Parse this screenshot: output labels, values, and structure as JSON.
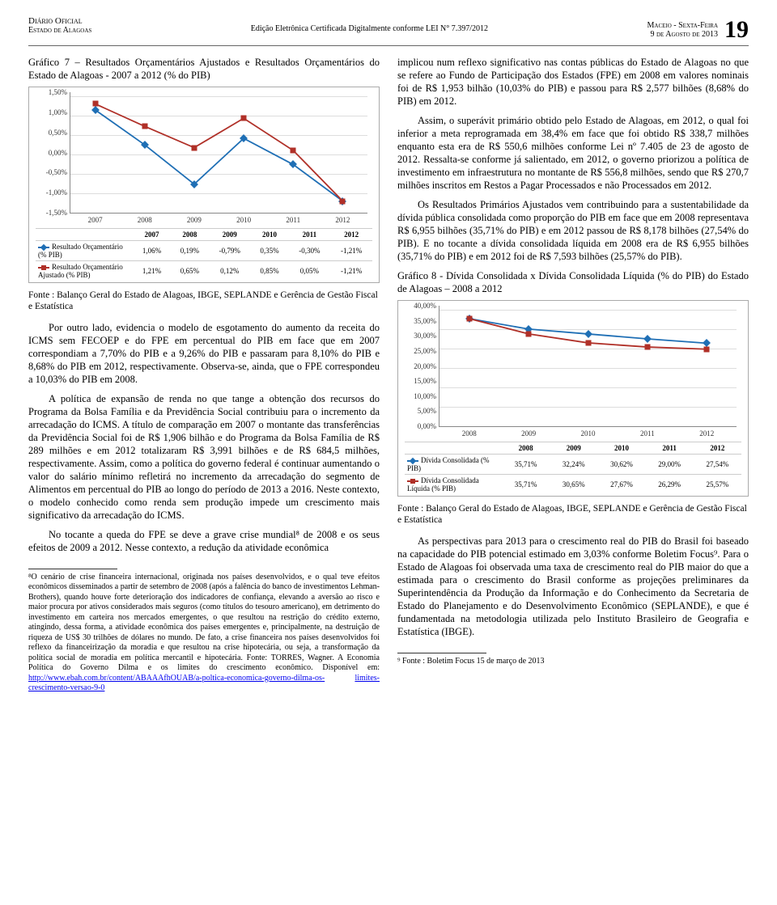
{
  "header": {
    "left1": "Diário Oficial",
    "left2": "Estado de Alagoas",
    "center": "Edição Eletrônica Certificada Digitalmente conforme LEI N° 7.397/2012",
    "right1": "Maceio - Sexta-Feira",
    "right2": "9 de Agosto de 2013",
    "page": "19"
  },
  "left": {
    "chartTitle": "Gráfico 7 – Resultados Orçamentários Ajustados e Resultados Orçamentários do Estado de Alagoas - 2007 a 2012 (% do PIB)",
    "caption": "Fonte : Balanço Geral do Estado de Alagoas, IBGE, SEPLANDE e Gerência de Gestão Fiscal e Estatística",
    "p1": "Por outro lado, evidencia o modelo de esgotamento do aumento da receita do ICMS sem FECOEP e do FPE em percentual do PIB em face que em 2007 correspondiam a 7,70% do PIB e a 9,26% do PIB e passaram para 8,10% do PIB e 8,68% do PIB em 2012, respectivamente. Observa-se, ainda, que o FPE correspondeu a 10,03% do PIB em 2008.",
    "p2": "A política de expansão de renda no que tange a obtenção dos recursos do Programa da Bolsa Família e da Previdência Social contribuiu para o incremento da arrecadação do ICMS. A título de comparação em 2007 o montante das transferências da Previdência Social foi de R$ 1,906 bilhão e do Programa da Bolsa Família de R$ 289 milhões e em 2012 totalizaram R$ 3,991 bilhões e de R$ 684,5 milhões, respectivamente. Assim, como a política do governo federal é continuar aumentando o valor do salário mínimo refletirá no incremento da arrecadação do segmento de Alimentos em percentual do PIB ao longo do período de 2013 a 2016. Neste contexto, o modelo conhecido como renda sem produção impede um crescimento mais significativo da arrecadação do ICMS.",
    "p3": "No tocante a queda do FPE se deve a grave crise mundial⁸ de 2008 e os seus efeitos de 2009 a 2012. Nesse contexto, a redução da atividade econômica",
    "footnote": "⁸O cenário de crise financeira internacional, originada nos países desenvolvidos, e o qual teve efeitos econômicos disseminados a partir de setembro de 2008 (após a falência do banco de investimentos Lehman-Brothers), quando houve forte deterioração dos indicadores de confiança, elevando a aversão ao risco e maior procura por ativos considerados mais seguros (como títulos do tesouro americano), em detrimento do investimento em carteira nos mercados emergentes, o que resultou na restrição do crédito externo, atingindo, dessa forma, a atividade econômica dos países emergentes e, principalmente, na destruição de riqueza de US$ 30 trilhões de dólares no mundo. De fato, a crise financeira nos países desenvolvidos foi reflexo da financeirização da moradia e que resultou na crise hipotecária, ou seja, a transformação da política social de moradia em política mercantil e hipotecária. Fonte: TORRES, Wagner. A Economia Política do Governo Dilma e os limites do crescimento econômico. Disponível em: ",
    "footnoteLink1": "http://www.ebah.com.br/content/ABAAAfhOUAB/a-poltica-economica-governo-dilma-os-",
    "footnoteLink2": "limites-crescimento-versao-9-0"
  },
  "right": {
    "p1": "implicou num reflexo significativo nas contas públicas do Estado de Alagoas no que se refere ao Fundo de Participação dos Estados (FPE) em 2008 em valores nominais foi de R$ 1,953 bilhão (10,03% do PIB) e passou para R$ 2,577 bilhões (8,68% do PIB) em 2012.",
    "p2": "Assim, o superávit primário obtido pelo Estado de Alagoas, em 2012, o qual foi inferior a meta reprogramada em 38,4% em face que foi obtido R$ 338,7 milhões enquanto esta era de R$ 550,6 milhões conforme Lei nº 7.405 de 23 de agosto de 2012. Ressalta-se conforme já salientado, em 2012, o governo priorizou a política de investimento em infraestrutura no montante de R$ 556,8 milhões, sendo que R$ 270,7 milhões inscritos em Restos a Pagar Processados e não Processados em 2012.",
    "p3": "Os Resultados Primários Ajustados vem contribuindo para a sustentabilidade da dívida pública consolidada como proporção do PIB em face que em 2008 representava R$ 6,955 bilhões (35,71% do PIB) e em 2012 passou de R$ 8,178 bilhões (27,54% do PIB). E no tocante a dívida consolidada líquida em 2008 era de R$ 6,955 bilhões (35,71% do PIB) e em 2012 foi de R$ 7,593 bilhões (25,57% do PIB).",
    "chartTitle": "Gráfico 8 - Dívida Consolidada x Dívida Consolidada Líquida (% do PIB) do Estado de Alagoas – 2008 a 2012",
    "caption": "Fonte : Balanço Geral do Estado de Alagoas, IBGE, SEPLANDE e Gerência de Gestão Fiscal e Estatística",
    "p4": "As perspectivas para 2013 para o crescimento real do PIB do Brasil foi baseado na capacidade do PIB potencial estimado em 3,03% conforme Boletim Focus⁹. Para o Estado de Alagoas foi observada uma taxa de crescimento real do PIB maior do que a estimada para o crescimento do Brasil conforme as projeções preliminares da Superintendência da Produção da Informação e do Conhecimento da Secretaria de Estado do Planejamento e do Desenvolvimento Econômico (SEPLANDE), e que é fundamentada na metodologia utilizada pelo Instituto Brasileiro de Geografia e Estatística (IBGE).",
    "footnote": "⁹ Fonte : Boletim Focus 15 de março de 2013"
  },
  "chart7": {
    "type": "line",
    "categories": [
      "2007",
      "2008",
      "2009",
      "2010",
      "2011",
      "2012"
    ],
    "yticks": [
      "1,50%",
      "1,00%",
      "0,50%",
      "0,00%",
      "-0,50%",
      "-1,00%",
      "-1,50%"
    ],
    "series": [
      {
        "label": "Resultado Orçamentário (% PIB)",
        "color": "#1f6fb5",
        "marker": "diamond",
        "labels": [
          "1,06%",
          "0,19%",
          "-0,79%",
          "0,35%",
          "-0,30%",
          "-1,21%"
        ],
        "values": [
          1.06,
          0.19,
          -0.79,
          0.35,
          -0.3,
          -1.21
        ]
      },
      {
        "label": "Resultado Orçamentário Ajustado (% PIB)",
        "color": "#b03028",
        "marker": "square",
        "labels": [
          "1,21%",
          "0,65%",
          "0,12%",
          "0,85%",
          "0,05%",
          "-1,21%"
        ],
        "values": [
          1.21,
          0.65,
          0.12,
          0.85,
          0.05,
          -1.21
        ]
      }
    ],
    "ylim": [
      -1.5,
      1.5
    ],
    "background": "#ffffff",
    "grid_color": "#dddddd"
  },
  "chart8": {
    "type": "line",
    "categories": [
      "2008",
      "2009",
      "2010",
      "2011",
      "2012"
    ],
    "yticks": [
      "40,00%",
      "35,00%",
      "30,00%",
      "25,00%",
      "20,00%",
      "15,00%",
      "10,00%",
      "5,00%",
      "0,00%"
    ],
    "series": [
      {
        "label": "Dívida Consolidada (% PIB)",
        "color": "#1f6fb5",
        "marker": "diamond",
        "labels": [
          "35,71%",
          "32,24%",
          "30,62%",
          "29,00%",
          "27,54%"
        ],
        "values": [
          35.71,
          32.24,
          30.62,
          29.0,
          27.54
        ]
      },
      {
        "label": "Dívida Consolidada Líquida (% PIB)",
        "color": "#b03028",
        "marker": "square",
        "labels": [
          "35,71%",
          "30,65%",
          "27,67%",
          "26,29%",
          "25,57%"
        ],
        "values": [
          35.71,
          30.65,
          27.67,
          26.29,
          25.57
        ]
      }
    ],
    "ylim": [
      0,
      40
    ],
    "background": "#ffffff",
    "grid_color": "#dddddd"
  }
}
